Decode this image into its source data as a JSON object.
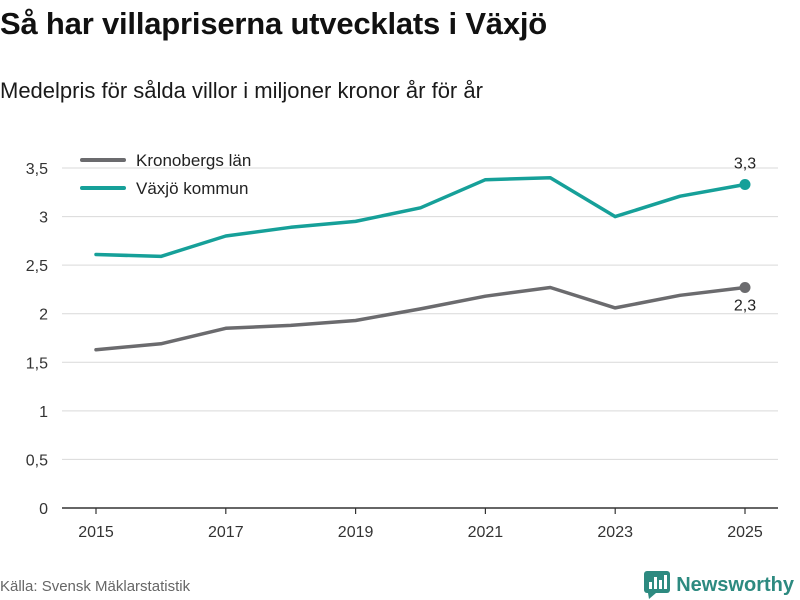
{
  "header": {
    "title": "Så har villapriserna utvecklats i Växjö",
    "subtitle": "Medelpris för sålda villor i miljoner kronor år för år"
  },
  "chart_data": {
    "type": "line",
    "title": "Så har villapriserna utvecklats i Växjö",
    "subtitle": "Medelpris för sålda villor i miljoner kronor år för år",
    "xlabel": "",
    "ylabel": "",
    "x": [
      2015,
      2016,
      2017,
      2018,
      2019,
      2020,
      2021,
      2022,
      2023,
      2024,
      2025
    ],
    "xticks": [
      2015,
      2017,
      2019,
      2021,
      2023,
      2025
    ],
    "ylim": [
      0,
      3.5
    ],
    "yticks": [
      0,
      0.5,
      1,
      1.5,
      2,
      2.5,
      3,
      3.5
    ],
    "ytick_labels": [
      "0",
      "0,5",
      "1",
      "1,5",
      "2",
      "2,5",
      "3",
      "3,5"
    ],
    "grid": true,
    "legend_position": "top-left",
    "series": [
      {
        "name": "Kronobergs län",
        "color": "#6b6b6e",
        "values": [
          1.63,
          1.69,
          1.85,
          1.88,
          1.93,
          2.05,
          2.18,
          2.27,
          2.06,
          2.19,
          2.27
        ],
        "end_label": "2,3"
      },
      {
        "name": "Växjö kommun",
        "color": "#16a099",
        "values": [
          2.61,
          2.59,
          2.8,
          2.89,
          2.95,
          3.09,
          3.38,
          3.4,
          3.0,
          3.21,
          3.33
        ],
        "end_label": "3,3"
      }
    ]
  },
  "footer": {
    "source": "Källa: Svensk Mäklarstatistik",
    "brand": "Newsworthy",
    "brand_icon": "newsworthy-logo-icon",
    "brand_color": "#2d8a80"
  }
}
